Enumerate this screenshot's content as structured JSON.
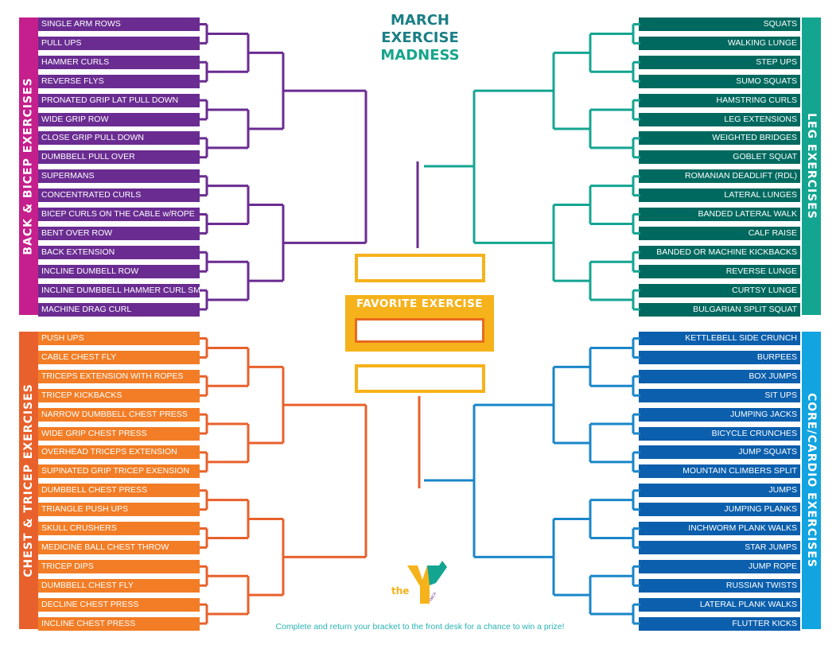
{
  "title": {
    "line1": "MARCH",
    "line2": "EXERCISE",
    "line3": "MADNESS"
  },
  "champion": {
    "label": "FAVORITE EXERCISE"
  },
  "footer": "Complete and return your bracket to the front desk for a chance to win a prize!",
  "logo": {
    "text": "the",
    "small": "YMCA"
  },
  "regions": {
    "back_bicep": {
      "label": "BACK & BICEP EXERCISES",
      "color": "#6a2c91",
      "sidebar_color": "#c41f8c",
      "entries": [
        "SINGLE ARM ROWS",
        "PULL UPS",
        "HAMMER CURLS",
        "REVERSE FLYS",
        "PRONATED GRIP LAT PULL DOWN",
        "WIDE GRIP ROW",
        "CLOSE GRIP PULL DOWN",
        "DUMBBELL PULL OVER",
        "SUPERMANS",
        "CONCENTRATED CURLS",
        "BICEP  CURLS  ON  THE  CABLE  w/ROPE",
        "BENT OVER ROW",
        "BACK EXTENSION",
        "INCLINE DUMBELL ROW",
        "INCLINE DUMBBELL HAMMER CURL SMITH",
        "MACHINE DRAG CURL"
      ]
    },
    "chest_tricep": {
      "label": "CHEST & TRICEP EXERCISES",
      "color": "#f27d26",
      "line_color": "#e8612c",
      "sidebar_color": "#e8612c",
      "entries": [
        "PUSH UPS",
        "CABLE CHEST FLY",
        "TRICEPS EXTENSION WITH ROPES",
        "TRICEP KICKBACKS",
        "NARROW   DUMBBELL   CHEST   PRESS",
        "WIDE GRIP CHEST PRESS",
        "OVERHEAD TRICEPS EXTENSION",
        "SUPINATED GRIP TRICEP EXENSION",
        "DUMBBELL CHEST PRESS",
        "TRIANGLE PUSH UPS",
        "SKULL CRUSHERS",
        "MEDICINE BALL CHEST THROW",
        "TRICEP DIPS",
        "DUMBBELL CHEST FLY",
        "DECLINE CHEST PRESS",
        "INCLINE CHEST PRESS"
      ]
    },
    "leg": {
      "label": "LEG EXERCISES",
      "color": "#00695f",
      "line_color": "#14a591",
      "sidebar_color": "#14a591",
      "entries": [
        "SQUATS",
        "WALKING LUNGE",
        "STEP UPS",
        "SUMO SQUATS",
        "HAMSTRING CURLS",
        "LEG EXTENSIONS",
        "WEIGHTED BRIDGES",
        "GOBLET SQUAT",
        "ROMANIAN DEADLIFT (RDL)",
        "LATERAL LUNGES",
        "BANDED LATERAL WALK",
        "CALF RAISE",
        "BANDED OR MACHINE KICKBACKS",
        "REVERSE LUNGE",
        "CURTSY LUNGE",
        "BULGARIAN SPLIT SQUAT"
      ]
    },
    "core_cardio": {
      "label": "CORE/CARDIO EXERCISES",
      "color": "#0b5fad",
      "line_color": "#1a86c9",
      "sidebar_color": "#12a4e0",
      "entries": [
        "KETTLEBELL SIDE CRUNCH",
        "BURPEES",
        "BOX JUMPS",
        "SIT UPS",
        "JUMPING JACKS",
        "BICYCLE CRUNCHES",
        "JUMP SQUATS",
        "MOUNTAIN CLIMBERS SPLIT",
        "JUMPS",
        "JUMPING PLANKS",
        "INCHWORM PLANK WALKS",
        "STAR JUMPS",
        "JUMP ROPE",
        "RUSSIAN TWISTS",
        "LATERAL PLANK WALKS",
        "FLUTTER KICKS"
      ]
    }
  }
}
